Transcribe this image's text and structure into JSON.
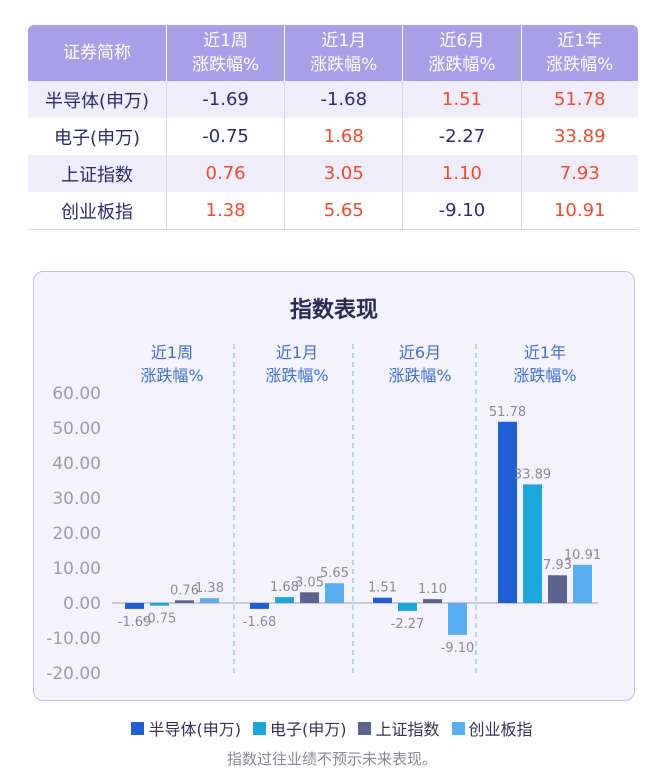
{
  "table": {
    "header": [
      "证券简称",
      [
        "近1周",
        "涨跌幅%"
      ],
      [
        "近1月",
        "涨跌幅%"
      ],
      [
        "近6月",
        "涨跌幅%"
      ],
      [
        "近1年",
        "涨跌幅%"
      ]
    ],
    "rows": [
      {
        "name": "半导体(申万)",
        "cells": [
          "-1.69",
          "-1.68",
          "1.51",
          "51.78"
        ]
      },
      {
        "name": "电子(申万)",
        "cells": [
          "-0.75",
          "1.68",
          "-2.27",
          "33.89"
        ]
      },
      {
        "name": "上证指数",
        "cells": [
          "0.76",
          "3.05",
          "1.10",
          "7.93"
        ]
      },
      {
        "name": "创业板指",
        "cells": [
          "1.38",
          "5.65",
          "-9.10",
          "10.91"
        ]
      }
    ]
  },
  "colors": {
    "positive_text": "#ee4a2f",
    "negative_text": "#2b2b6a",
    "header_bg": "#a99fe8"
  },
  "chart_data": {
    "type": "bar",
    "title": "指数表现",
    "categories": [
      [
        "近1周",
        "涨跌幅%"
      ],
      [
        "近1月",
        "涨跌幅%"
      ],
      [
        "近6月",
        "涨跌幅%"
      ],
      [
        "近1年",
        "涨跌幅%"
      ]
    ],
    "series": [
      {
        "name": "半导体(申万)",
        "color": "#1f5fd6",
        "values": [
          -1.69,
          -1.68,
          1.51,
          51.78
        ],
        "labels": [
          "-1.69",
          "-1.68",
          "1.51",
          "51.78"
        ]
      },
      {
        "name": "电子(申万)",
        "color": "#1aa7dc",
        "values": [
          -0.75,
          1.68,
          -2.27,
          33.89
        ],
        "labels": [
          "-0.75",
          "1.68",
          "-2.27",
          "33.89"
        ]
      },
      {
        "name": "上证指数",
        "color": "#5c6391",
        "values": [
          0.76,
          3.05,
          1.1,
          7.93
        ],
        "labels": [
          "0.76",
          "3.05",
          "1.10",
          "7.93"
        ]
      },
      {
        "name": "创业板指",
        "color": "#58aef0",
        "values": [
          1.38,
          5.65,
          -9.1,
          10.91
        ],
        "labels": [
          "1.38",
          "5.65",
          "-9.10",
          "10.91"
        ]
      }
    ],
    "yticks": [
      "60.00",
      "50.00",
      "40.00",
      "30.00",
      "20.00",
      "10.00",
      "0.00",
      "-10.00",
      "-20.00"
    ],
    "ylim": [
      -20,
      60
    ],
    "grid": false,
    "legend_position": "bottom"
  },
  "footnote": "指数过往业绩不预示未来表现。"
}
